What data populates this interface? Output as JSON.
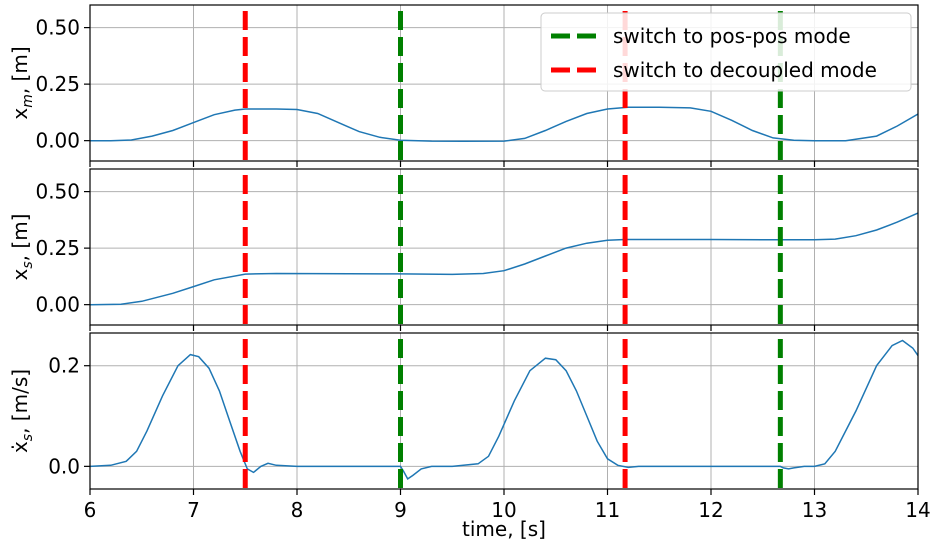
{
  "chart_data": [
    {
      "type": "line",
      "ylabel": "x_m, [m]",
      "ylabel_main": "x",
      "ylabel_sub": "m",
      "ylabel_rest": ", [m]",
      "xlim": [
        6,
        14
      ],
      "ylim": [
        -0.09,
        0.6
      ],
      "yticks": [
        0.0,
        0.25,
        0.5
      ],
      "ytick_labels": [
        "0.00",
        "0.25",
        "0.50"
      ],
      "grid": true,
      "legend": "top-right",
      "series": [
        {
          "color": "#1f77b4",
          "x": [
            6.0,
            6.2,
            6.4,
            6.6,
            6.8,
            7.0,
            7.2,
            7.4,
            7.5,
            7.8,
            8.0,
            8.2,
            8.4,
            8.6,
            8.8,
            9.0,
            9.3,
            9.6,
            10.0,
            10.2,
            10.4,
            10.6,
            10.8,
            11.0,
            11.2,
            11.5,
            11.8,
            12.0,
            12.2,
            12.4,
            12.6,
            12.8,
            13.0,
            13.3,
            13.6,
            13.8,
            14.0
          ],
          "y": [
            0.0,
            0.0,
            0.003,
            0.02,
            0.045,
            0.08,
            0.115,
            0.135,
            0.14,
            0.14,
            0.138,
            0.12,
            0.08,
            0.04,
            0.015,
            0.002,
            -0.002,
            -0.003,
            -0.002,
            0.01,
            0.045,
            0.085,
            0.12,
            0.14,
            0.148,
            0.148,
            0.145,
            0.13,
            0.09,
            0.045,
            0.012,
            0.002,
            0.0,
            0.0,
            0.02,
            0.065,
            0.118
          ]
        }
      ],
      "switch_lines": [
        {
          "x": 7.5,
          "color": "#ff0000"
        },
        {
          "x": 9.0,
          "color": "#008000"
        },
        {
          "x": 11.17,
          "color": "#ff0000"
        },
        {
          "x": 12.67,
          "color": "#008000"
        }
      ],
      "legend_entries": [
        {
          "label": "switch to pos-pos mode",
          "color": "#008000"
        },
        {
          "label": "switch to decoupled mode",
          "color": "#ff0000"
        }
      ]
    },
    {
      "type": "line",
      "ylabel": "x_s, [m]",
      "ylabel_main": "x",
      "ylabel_sub": "s",
      "ylabel_rest": ", [m]",
      "xlim": [
        6,
        14
      ],
      "ylim": [
        -0.09,
        0.6
      ],
      "yticks": [
        0.0,
        0.25,
        0.5
      ],
      "ytick_labels": [
        "0.00",
        "0.25",
        "0.50"
      ],
      "grid": true,
      "series": [
        {
          "color": "#1f77b4",
          "x": [
            6.0,
            6.3,
            6.5,
            6.8,
            7.0,
            7.2,
            7.5,
            7.8,
            8.5,
            9.0,
            9.5,
            9.8,
            10.0,
            10.2,
            10.4,
            10.6,
            10.8,
            11.0,
            11.17,
            11.5,
            12.0,
            12.5,
            13.0,
            13.2,
            13.4,
            13.6,
            13.8,
            14.0
          ],
          "y": [
            0.0,
            0.002,
            0.015,
            0.05,
            0.08,
            0.11,
            0.135,
            0.138,
            0.137,
            0.136,
            0.134,
            0.138,
            0.15,
            0.18,
            0.215,
            0.25,
            0.272,
            0.285,
            0.288,
            0.288,
            0.288,
            0.287,
            0.287,
            0.29,
            0.305,
            0.33,
            0.365,
            0.405
          ]
        }
      ],
      "switch_lines": [
        {
          "x": 7.5,
          "color": "#ff0000"
        },
        {
          "x": 9.0,
          "color": "#008000"
        },
        {
          "x": 11.17,
          "color": "#ff0000"
        },
        {
          "x": 12.67,
          "color": "#008000"
        }
      ]
    },
    {
      "type": "line",
      "ylabel": "ẋ_s, [m/s]",
      "ylabel_main": "ẋ",
      "ylabel_sub": "s",
      "ylabel_rest": ", [m/s]",
      "xlim": [
        6,
        14
      ],
      "ylim": [
        -0.045,
        0.265
      ],
      "yticks": [
        0.0,
        0.2
      ],
      "ytick_labels": [
        "0.0",
        "0.2"
      ],
      "xticks": [
        6,
        7,
        8,
        9,
        10,
        11,
        12,
        13,
        14
      ],
      "xtick_labels": [
        "6",
        "7",
        "8",
        "9",
        "10",
        "11",
        "12",
        "13",
        "14"
      ],
      "xlabel": "time, [s]",
      "grid": true,
      "series": [
        {
          "color": "#1f77b4",
          "x": [
            6.0,
            6.2,
            6.35,
            6.45,
            6.55,
            6.7,
            6.85,
            6.97,
            7.05,
            7.15,
            7.25,
            7.35,
            7.45,
            7.52,
            7.58,
            7.65,
            7.72,
            7.8,
            8.0,
            8.5,
            9.0,
            9.03,
            9.07,
            9.12,
            9.2,
            9.3,
            9.5,
            9.75,
            9.85,
            9.95,
            10.1,
            10.25,
            10.4,
            10.5,
            10.6,
            10.7,
            10.8,
            10.9,
            11.0,
            11.1,
            11.2,
            11.3,
            11.5,
            12.0,
            12.67,
            12.7,
            12.75,
            12.8,
            12.9,
            13.0,
            13.1,
            13.2,
            13.4,
            13.6,
            13.75,
            13.85,
            13.95,
            14.0
          ],
          "y": [
            0.0,
            0.002,
            0.01,
            0.03,
            0.07,
            0.14,
            0.2,
            0.222,
            0.218,
            0.195,
            0.15,
            0.09,
            0.03,
            -0.005,
            -0.012,
            0.0,
            0.006,
            0.002,
            0.0,
            0.0,
            0.0,
            -0.01,
            -0.025,
            -0.018,
            -0.005,
            0.0,
            0.0,
            0.005,
            0.02,
            0.06,
            0.13,
            0.19,
            0.215,
            0.212,
            0.19,
            0.15,
            0.1,
            0.05,
            0.015,
            0.002,
            -0.002,
            0.0,
            0.0,
            0.0,
            0.0,
            -0.003,
            -0.005,
            -0.003,
            0.0,
            0.0,
            0.005,
            0.03,
            0.11,
            0.2,
            0.24,
            0.25,
            0.235,
            0.22
          ]
        }
      ],
      "switch_lines": [
        {
          "x": 7.5,
          "color": "#ff0000"
        },
        {
          "x": 9.0,
          "color": "#008000"
        },
        {
          "x": 11.17,
          "color": "#ff0000"
        },
        {
          "x": 12.67,
          "color": "#008000"
        }
      ]
    }
  ]
}
